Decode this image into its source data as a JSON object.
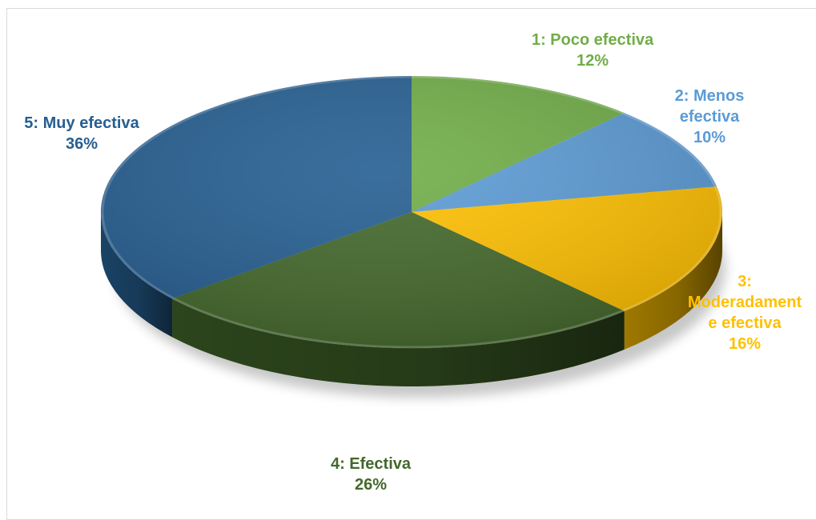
{
  "chart_data": {
    "type": "pie",
    "style": "3d",
    "categories": [
      "1: Poco efectiva",
      "2: Menos efectiva",
      "3: Moderadamente efectiva",
      "4: Efectiva",
      "5: Muy efectiva"
    ],
    "values": [
      12,
      10,
      16,
      26,
      36
    ],
    "value_labels": [
      "12%",
      "10%",
      "16%",
      "26%",
      "36%"
    ],
    "label_lines": [
      [
        "1: Poco efectiva"
      ],
      [
        "2: Menos",
        "efectiva"
      ],
      [
        "3:",
        "Moderadament",
        "e efectiva"
      ],
      [
        "4: Efectiva"
      ],
      [
        "5: Muy efectiva"
      ]
    ],
    "colors": [
      "#70AD47",
      "#5B9BD5",
      "#FFC000",
      "#43682B",
      "#255E91"
    ],
    "side_colors": [
      "#4E7A31",
      "#3F6D96",
      "#9E7800",
      "#2C451C",
      "#1A4366"
    ],
    "title": "",
    "legend": "none"
  }
}
